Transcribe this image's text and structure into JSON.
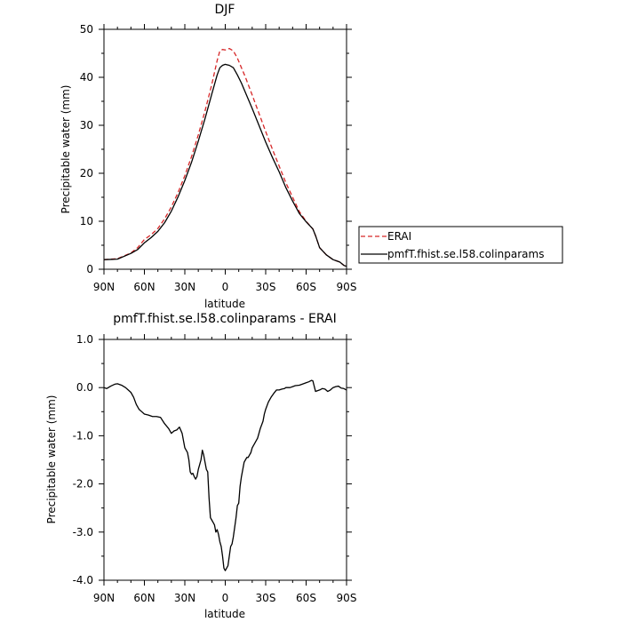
{
  "chart_data": [
    {
      "type": "line",
      "title": "DJF",
      "xlabel": "latitude",
      "ylabel": "Precipitable water (mm)",
      "xlim": [
        90,
        -90
      ],
      "ylim": [
        0,
        50
      ],
      "yticks": [
        0,
        10,
        20,
        30,
        40,
        50
      ],
      "xticks": [
        {
          "value": 90,
          "label": "90N"
        },
        {
          "value": 60,
          "label": "60N"
        },
        {
          "value": 30,
          "label": "30N"
        },
        {
          "value": 0,
          "label": "0"
        },
        {
          "value": -30,
          "label": "30S"
        },
        {
          "value": -60,
          "label": "60S"
        },
        {
          "value": -90,
          "label": "90S"
        }
      ],
      "legend": {
        "placement": "right-outside",
        "entries": [
          "ERAI",
          "pmfT.fhist.se.l58.colinparams"
        ]
      },
      "series": [
        {
          "name": "ERAI",
          "color": "#d62728",
          "dash": "dashed",
          "x": [
            90,
            80,
            75,
            70,
            65,
            60,
            55,
            50,
            45,
            40,
            35,
            30,
            25,
            20,
            15,
            10,
            6,
            4,
            2,
            0,
            -3,
            -6,
            -9,
            -12,
            -15,
            -20,
            -25,
            -30,
            -35,
            -40,
            -45,
            -50,
            -55,
            -60,
            -65,
            -67,
            -70,
            -75,
            -80,
            -85,
            -88,
            -90
          ],
          "values": [
            2.0,
            2.2,
            2.8,
            3.4,
            4.5,
            6.2,
            7.2,
            8.5,
            10.5,
            13.0,
            16.0,
            19.5,
            23.5,
            28.0,
            33.0,
            38.5,
            43.5,
            45.5,
            45.8,
            45.7,
            46.0,
            45.5,
            44.0,
            42.0,
            40.0,
            36.3,
            32.5,
            28.7,
            25.0,
            21.5,
            18.0,
            15.0,
            12.0,
            10.0,
            8.4,
            7.0,
            4.5,
            3.0,
            2.0,
            1.5,
            0.8,
            0.6
          ]
        },
        {
          "name": "pmfT.fhist.se.l58.colinparams",
          "color": "#000000",
          "dash": "solid",
          "x": [
            90,
            80,
            75,
            70,
            65,
            60,
            55,
            50,
            45,
            40,
            35,
            30,
            25,
            20,
            15,
            10,
            6,
            4,
            2,
            0,
            -3,
            -6,
            -9,
            -12,
            -15,
            -20,
            -25,
            -30,
            -35,
            -40,
            -45,
            -50,
            -55,
            -60,
            -65,
            -67,
            -70,
            -75,
            -80,
            -85,
            -88,
            -90
          ],
          "values": [
            2.0,
            2.1,
            2.7,
            3.3,
            4.1,
            5.5,
            6.6,
            7.9,
            9.7,
            12.1,
            15.1,
            18.5,
            22.3,
            26.7,
            31.4,
            36.5,
            40.5,
            42.0,
            42.5,
            42.7,
            42.5,
            42.0,
            40.5,
            38.8,
            36.8,
            33.5,
            30.0,
            26.5,
            23.3,
            20.3,
            17.0,
            14.2,
            11.6,
            9.9,
            8.4,
            7.0,
            4.5,
            3.0,
            2.0,
            1.5,
            0.8,
            0.6
          ]
        }
      ]
    },
    {
      "type": "line",
      "title": "pmfT.fhist.se.l58.colinparams - ERAI",
      "xlabel": "latitude",
      "ylabel": "Precipitable water (mm)",
      "xlim": [
        90,
        -90
      ],
      "ylim": [
        -4.0,
        1.0
      ],
      "yticks": [
        -4.0,
        -3.0,
        -2.0,
        -1.0,
        0.0,
        1.0
      ],
      "yticklabels": [
        "-4.0",
        "-3.0",
        "-2.0",
        "-1.0",
        "0.0",
        "1.0"
      ],
      "xticks": [
        {
          "value": 90,
          "label": "90N"
        },
        {
          "value": 60,
          "label": "60N"
        },
        {
          "value": 30,
          "label": "30N"
        },
        {
          "value": 0,
          "label": "0"
        },
        {
          "value": -30,
          "label": "30S"
        },
        {
          "value": -60,
          "label": "60S"
        },
        {
          "value": -90,
          "label": "90S"
        }
      ],
      "series": [
        {
          "color": "#000000",
          "x": [
            90,
            88,
            85,
            82,
            80,
            77,
            74,
            72,
            70,
            68,
            66,
            64,
            62,
            60,
            57,
            54,
            51,
            48,
            45,
            42,
            40,
            38,
            36,
            34,
            32,
            31,
            30,
            28,
            27,
            26,
            25,
            24,
            23,
            22,
            21,
            20,
            19,
            18,
            17,
            16,
            15,
            14,
            13,
            12,
            11,
            10,
            9,
            8,
            7,
            6,
            5,
            4,
            3,
            2,
            1,
            0,
            -1,
            -2,
            -3,
            -4,
            -5,
            -6,
            -7,
            -8,
            -9,
            -10,
            -11,
            -12,
            -13,
            -14,
            -15,
            -16,
            -17,
            -18,
            -19,
            -20,
            -22,
            -24,
            -25,
            -26,
            -28,
            -29,
            -30,
            -32,
            -34,
            -36,
            -38,
            -40,
            -42,
            -44,
            -45,
            -48,
            -50,
            -52,
            -55,
            -58,
            -60,
            -62,
            -64,
            -65,
            -67,
            -70,
            -72,
            -74,
            -76,
            -78,
            -80,
            -82,
            -84,
            -86,
            -88,
            -90
          ],
          "values": [
            0.0,
            -0.02,
            0.03,
            0.07,
            0.08,
            0.05,
            0.0,
            -0.05,
            -0.1,
            -0.2,
            -0.35,
            -0.45,
            -0.5,
            -0.55,
            -0.57,
            -0.6,
            -0.6,
            -0.62,
            -0.75,
            -0.85,
            -0.95,
            -0.9,
            -0.88,
            -0.82,
            -0.95,
            -1.1,
            -1.25,
            -1.35,
            -1.5,
            -1.75,
            -1.8,
            -1.78,
            -1.85,
            -1.9,
            -1.85,
            -1.7,
            -1.6,
            -1.5,
            -1.3,
            -1.4,
            -1.55,
            -1.7,
            -1.75,
            -2.3,
            -2.7,
            -2.75,
            -2.8,
            -2.85,
            -3.0,
            -2.95,
            -3.05,
            -3.2,
            -3.3,
            -3.5,
            -3.75,
            -3.8,
            -3.75,
            -3.7,
            -3.5,
            -3.3,
            -3.25,
            -3.1,
            -2.9,
            -2.7,
            -2.45,
            -2.4,
            -2.05,
            -1.85,
            -1.7,
            -1.55,
            -1.5,
            -1.45,
            -1.45,
            -1.4,
            -1.35,
            -1.25,
            -1.15,
            -1.05,
            -0.95,
            -0.85,
            -0.7,
            -0.55,
            -0.45,
            -0.3,
            -0.2,
            -0.12,
            -0.05,
            -0.05,
            -0.03,
            -0.02,
            0.0,
            0.0,
            0.02,
            0.04,
            0.05,
            0.08,
            0.1,
            0.12,
            0.15,
            0.14,
            -0.08,
            -0.05,
            -0.02,
            -0.03,
            -0.08,
            -0.05,
            0.0,
            0.02,
            0.03,
            -0.01,
            -0.02,
            -0.05
          ]
        }
      ]
    }
  ]
}
